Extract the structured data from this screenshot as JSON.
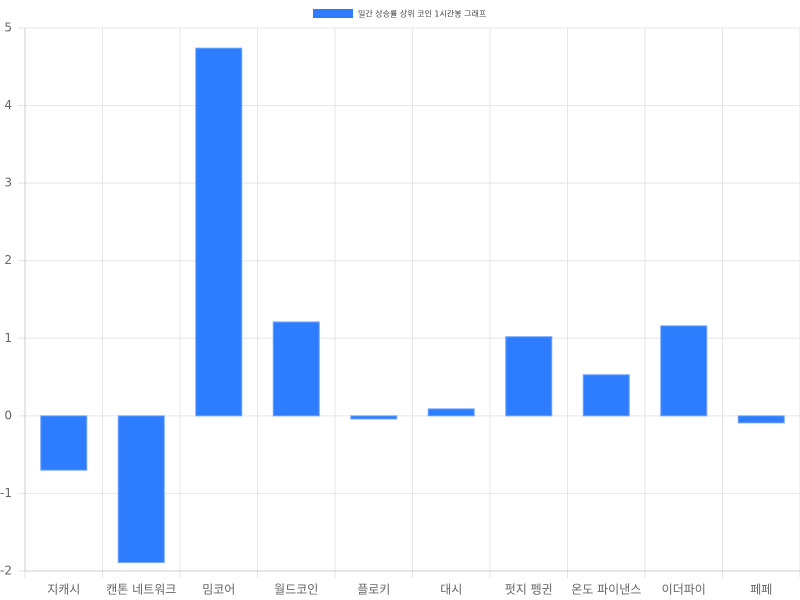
{
  "chart_data": {
    "type": "bar",
    "categories": [
      "지캐시",
      "캔톤 네트워크",
      "밈코어",
      "월드코인",
      "플로키",
      "대시",
      "펏지 펭귄",
      "온도 파이낸스",
      "이더파이",
      "페페"
    ],
    "series": [
      {
        "name": "일간 상승률 상위 코인 1시간봉 그래프",
        "color": "#2e7cff",
        "values": [
          -0.7,
          -1.89,
          4.74,
          1.21,
          -0.04,
          0.09,
          1.02,
          0.53,
          1.16,
          -0.09
        ]
      }
    ],
    "ylim": [
      -2,
      5
    ],
    "yticks": [
      -2,
      -1,
      0,
      1,
      2,
      3,
      4,
      5
    ],
    "grid": true,
    "legend": "top"
  }
}
